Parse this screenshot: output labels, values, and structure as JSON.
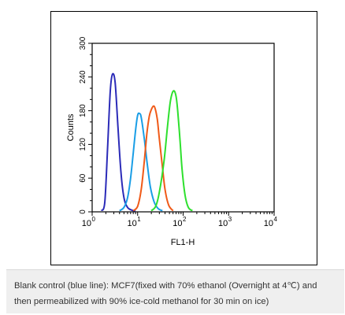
{
  "chart_data": {
    "type": "line",
    "x_scale": "log",
    "xlim": [
      1,
      10000
    ],
    "ylim": [
      0,
      300
    ],
    "xlabel": "FL1-H",
    "ylabel": "Counts",
    "y_ticks": [
      0,
      60,
      120,
      180,
      240,
      300
    ],
    "x_ticks": [
      {
        "value": 1,
        "base": "10",
        "exp": "0"
      },
      {
        "value": 10,
        "base": "10",
        "exp": "1"
      },
      {
        "value": 100,
        "base": "10",
        "exp": "2"
      },
      {
        "value": 1000,
        "base": "10",
        "exp": "3"
      },
      {
        "value": 10000,
        "base": "10",
        "exp": "4"
      }
    ],
    "grid": false,
    "series": [
      {
        "color": "#2b2bb8",
        "x": [
          1.6,
          1.9,
          2.2,
          2.5,
          2.8,
          3.2,
          3.7,
          4.3,
          5.0,
          6.0,
          7.5,
          9.0
        ],
        "y": [
          2,
          18,
          120,
          215,
          245,
          230,
          150,
          70,
          25,
          8,
          3,
          2
        ]
      },
      {
        "color": "#1a9ee6",
        "x": [
          4.0,
          5.0,
          6.0,
          7.0,
          8.0,
          9.0,
          10.0,
          11.0,
          12.0,
          14.0,
          16.0,
          19.0,
          23.0,
          28.0,
          35.0
        ],
        "y": [
          2,
          8,
          25,
          60,
          105,
          145,
          172,
          175,
          168,
          130,
          90,
          45,
          18,
          6,
          2
        ]
      },
      {
        "color": "#f05a18",
        "x": [
          8.0,
          10.0,
          12.0,
          14.0,
          16.0,
          18.0,
          20.0,
          22.0,
          24.0,
          27.0,
          30.0,
          35.0,
          40.0,
          48.0,
          60.0
        ],
        "y": [
          2,
          10,
          40,
          90,
          140,
          170,
          182,
          188,
          185,
          165,
          130,
          80,
          40,
          12,
          2
        ]
      },
      {
        "color": "#2ee02e",
        "x": [
          20.0,
          25.0,
          30.0,
          38.0,
          45.0,
          52.0,
          58.0,
          64.0,
          70.0,
          76.0,
          85.0,
          95.0,
          110.0,
          130.0,
          160.0
        ],
        "y": [
          2,
          10,
          35,
          90,
          150,
          195,
          212,
          215,
          205,
          180,
          130,
          75,
          30,
          8,
          2
        ]
      }
    ]
  },
  "caption": {
    "line1": "Blank control (blue line): MCF7(fixed with 70% ethanol (Overnight at 4℃) and",
    "line2": "then permeabilized with 90% ice-cold methanol for 30 min on ice)"
  },
  "colors": {
    "caption_background": "#efefef",
    "caption_text": "#333333"
  }
}
